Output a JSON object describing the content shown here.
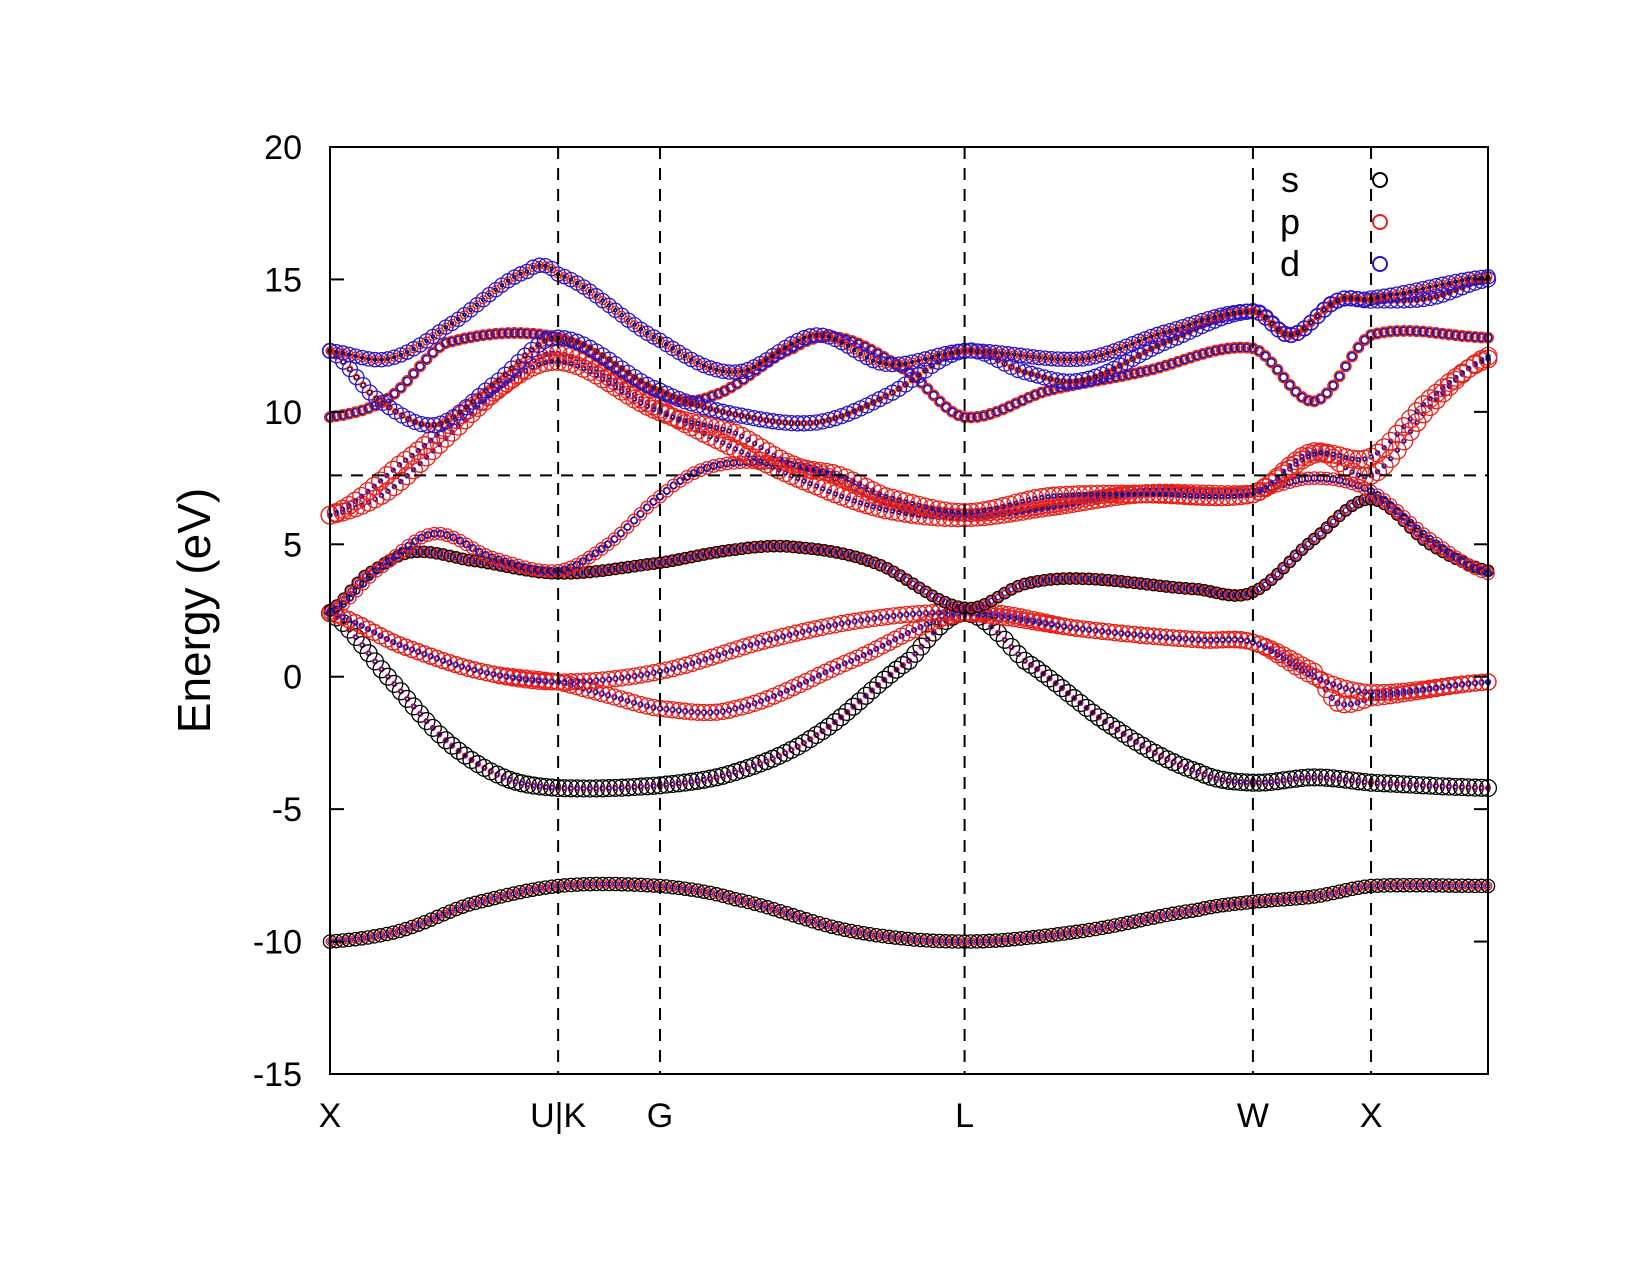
{
  "chart_data": {
    "type": "scatter",
    "title": "",
    "xlabel": "",
    "ylabel": "Energy (eV)",
    "ylim": [
      -15,
      20
    ],
    "y_ticks": [
      "-15",
      "-10",
      "-5",
      "0",
      "5",
      "10",
      "15",
      "20"
    ],
    "y_tick_values": [
      -15,
      -10,
      -5,
      0,
      5,
      10,
      15,
      20
    ],
    "xlim": [
      0,
      1
    ],
    "kpoints": [
      {
        "label": "X",
        "x": 0.0
      },
      {
        "label": "U|K",
        "x": 0.197
      },
      {
        "label": "G",
        "x": 0.285
      },
      {
        "label": "L",
        "x": 0.548
      },
      {
        "label": "W",
        "x": 0.797
      },
      {
        "label": "X",
        "x": 0.899
      }
    ],
    "fermi_level": 7.6,
    "legend": {
      "position": "top-right",
      "entries": [
        {
          "label": "s",
          "color": "#000000"
        },
        {
          "label": "p",
          "color": "#e8201a"
        },
        {
          "label": "d",
          "color": "#2b14c8"
        }
      ]
    },
    "grid": false,
    "bands": [
      {
        "points": [
          [
            0.0,
            -10.0
          ],
          [
            0.06,
            -9.6
          ],
          [
            0.12,
            -8.6
          ],
          [
            0.197,
            -7.9
          ],
          [
            0.285,
            -7.9
          ],
          [
            0.35,
            -8.4
          ],
          [
            0.45,
            -9.6
          ],
          [
            0.548,
            -10.0
          ],
          [
            0.65,
            -9.6
          ],
          [
            0.75,
            -8.8
          ],
          [
            0.797,
            -8.5
          ],
          [
            0.85,
            -8.3
          ],
          [
            0.899,
            -7.9
          ],
          [
            1.0,
            -7.9
          ]
        ],
        "weights": {
          "s": 0.6,
          "p": 0.3,
          "d": 0.1
        }
      },
      {
        "points": [
          [
            0.0,
            2.4
          ],
          [
            0.05,
            0.0
          ],
          [
            0.1,
            -2.4
          ],
          [
            0.15,
            -3.8
          ],
          [
            0.197,
            -4.2
          ],
          [
            0.285,
            -4.1
          ],
          [
            0.35,
            -3.6
          ],
          [
            0.42,
            -2.2
          ],
          [
            0.5,
            0.6
          ],
          [
            0.548,
            2.4
          ],
          [
            0.6,
            0.6
          ],
          [
            0.68,
            -2.0
          ],
          [
            0.75,
            -3.6
          ],
          [
            0.797,
            -4.0
          ],
          [
            0.85,
            -3.8
          ],
          [
            0.899,
            -4.0
          ],
          [
            1.0,
            -4.2
          ]
        ],
        "weights": {
          "s": 0.8,
          "p": 0.15,
          "d": 0.05
        }
      },
      {
        "points": [
          [
            0.0,
            2.4
          ],
          [
            0.06,
            1.2
          ],
          [
            0.13,
            0.2
          ],
          [
            0.197,
            -0.2
          ],
          [
            0.24,
            -0.7
          ],
          [
            0.285,
            -1.2
          ],
          [
            0.35,
            -1.2
          ],
          [
            0.45,
            0.6
          ],
          [
            0.548,
            2.4
          ],
          [
            0.65,
            1.8
          ],
          [
            0.75,
            1.4
          ],
          [
            0.797,
            1.3
          ],
          [
            0.85,
            0.2
          ],
          [
            0.87,
            -1.0
          ],
          [
            0.899,
            -0.8
          ],
          [
            1.0,
            -0.2
          ]
        ],
        "weights": {
          "s": 0.1,
          "p": 0.75,
          "d": 0.15
        }
      },
      {
        "points": [
          [
            0.0,
            2.4
          ],
          [
            0.06,
            1.2
          ],
          [
            0.13,
            0.2
          ],
          [
            0.197,
            -0.2
          ],
          [
            0.285,
            0.2
          ],
          [
            0.38,
            1.4
          ],
          [
            0.47,
            2.2
          ],
          [
            0.548,
            2.4
          ],
          [
            0.65,
            1.8
          ],
          [
            0.75,
            1.4
          ],
          [
            0.797,
            1.3
          ],
          [
            0.85,
            0.0
          ],
          [
            0.899,
            -0.6
          ],
          [
            1.0,
            -0.2
          ]
        ],
        "weights": {
          "s": 0.1,
          "p": 0.75,
          "d": 0.15
        }
      },
      {
        "points": [
          [
            0.0,
            2.5
          ],
          [
            0.03,
            3.8
          ],
          [
            0.07,
            4.7
          ],
          [
            0.12,
            4.4
          ],
          [
            0.197,
            3.9
          ],
          [
            0.285,
            4.3
          ],
          [
            0.35,
            4.8
          ],
          [
            0.4,
            4.9
          ],
          [
            0.47,
            4.3
          ],
          [
            0.548,
            2.6
          ],
          [
            0.6,
            3.5
          ],
          [
            0.65,
            3.7
          ],
          [
            0.75,
            3.3
          ],
          [
            0.797,
            3.2
          ],
          [
            0.85,
            5.2
          ],
          [
            0.899,
            6.7
          ],
          [
            0.95,
            5.0
          ],
          [
            1.0,
            4.0
          ]
        ],
        "weights": {
          "s": 0.5,
          "p": 0.35,
          "d": 0.15
        }
      },
      {
        "points": [
          [
            0.0,
            2.4
          ],
          [
            0.04,
            4.0
          ],
          [
            0.09,
            5.4
          ],
          [
            0.14,
            4.5
          ],
          [
            0.197,
            4.0
          ],
          [
            0.24,
            5.0
          ],
          [
            0.285,
            6.8
          ],
          [
            0.32,
            7.8
          ],
          [
            0.36,
            8.1
          ],
          [
            0.42,
            7.8
          ],
          [
            0.48,
            6.6
          ],
          [
            0.548,
            6.1
          ],
          [
            0.62,
            6.4
          ],
          [
            0.7,
            7.0
          ],
          [
            0.797,
            7.0
          ],
          [
            0.85,
            7.5
          ],
          [
            0.899,
            7.0
          ],
          [
            0.95,
            5.2
          ],
          [
            1.0,
            3.9
          ]
        ],
        "weights": {
          "s": 0.2,
          "p": 0.55,
          "d": 0.25
        }
      },
      {
        "points": [
          [
            0.0,
            6.1
          ],
          [
            0.05,
            7.0
          ],
          [
            0.1,
            9.0
          ],
          [
            0.15,
            11.0
          ],
          [
            0.197,
            12.2
          ],
          [
            0.285,
            10.1
          ],
          [
            0.35,
            8.6
          ],
          [
            0.42,
            7.2
          ],
          [
            0.48,
            6.3
          ],
          [
            0.548,
            6.0
          ],
          [
            0.62,
            6.4
          ],
          [
            0.7,
            6.9
          ],
          [
            0.797,
            6.9
          ],
          [
            0.85,
            8.5
          ],
          [
            0.899,
            7.6
          ],
          [
            0.95,
            10.2
          ],
          [
            1.0,
            12.1
          ]
        ],
        "weights": {
          "s": 0.05,
          "p": 0.85,
          "d": 0.1
        }
      },
      {
        "points": [
          [
            0.0,
            6.1
          ],
          [
            0.06,
            8.0
          ],
          [
            0.13,
            10.4
          ],
          [
            0.197,
            11.9
          ],
          [
            0.285,
            10.0
          ],
          [
            0.35,
            9.2
          ],
          [
            0.4,
            8.0
          ],
          [
            0.44,
            7.6
          ],
          [
            0.48,
            6.8
          ],
          [
            0.548,
            6.2
          ],
          [
            0.62,
            6.8
          ],
          [
            0.7,
            6.9
          ],
          [
            0.797,
            6.9
          ],
          [
            0.85,
            8.4
          ],
          [
            0.899,
            8.3
          ],
          [
            0.95,
            10.5
          ],
          [
            1.0,
            12.0
          ]
        ],
        "weights": {
          "s": 0.05,
          "p": 0.85,
          "d": 0.1
        }
      },
      {
        "points": [
          [
            0.0,
            9.8
          ],
          [
            0.05,
            10.5
          ],
          [
            0.1,
            12.6
          ],
          [
            0.197,
            12.8
          ],
          [
            0.285,
            10.7
          ],
          [
            0.33,
            10.6
          ],
          [
            0.4,
            12.4
          ],
          [
            0.44,
            12.8
          ],
          [
            0.5,
            11.5
          ],
          [
            0.548,
            9.8
          ],
          [
            0.62,
            10.8
          ],
          [
            0.7,
            11.5
          ],
          [
            0.797,
            12.4
          ],
          [
            0.85,
            10.4
          ],
          [
            0.899,
            12.9
          ],
          [
            1.0,
            12.8
          ]
        ],
        "weights": {
          "s": 0.3,
          "p": 0.45,
          "d": 0.25
        }
      },
      {
        "points": [
          [
            0.0,
            12.3
          ],
          [
            0.04,
            10.5
          ],
          [
            0.09,
            9.5
          ],
          [
            0.14,
            11.0
          ],
          [
            0.197,
            12.8
          ],
          [
            0.285,
            10.8
          ],
          [
            0.35,
            9.9
          ],
          [
            0.42,
            9.6
          ],
          [
            0.48,
            10.6
          ],
          [
            0.548,
            12.3
          ],
          [
            0.6,
            11.5
          ],
          [
            0.65,
            11.2
          ],
          [
            0.72,
            12.6
          ],
          [
            0.797,
            13.8
          ],
          [
            0.83,
            12.9
          ],
          [
            0.87,
            14.2
          ],
          [
            0.899,
            14.2
          ],
          [
            0.95,
            14.3
          ],
          [
            1.0,
            15.0
          ]
        ],
        "weights": {
          "s": 0.1,
          "p": 0.2,
          "d": 0.7
        }
      },
      {
        "points": [
          [
            0.0,
            12.3
          ],
          [
            0.05,
            12.0
          ],
          [
            0.1,
            13.2
          ],
          [
            0.17,
            15.3
          ],
          [
            0.197,
            15.2
          ],
          [
            0.285,
            12.7
          ],
          [
            0.35,
            11.5
          ],
          [
            0.42,
            12.9
          ],
          [
            0.48,
            11.8
          ],
          [
            0.548,
            12.3
          ],
          [
            0.65,
            12.0
          ],
          [
            0.72,
            13.0
          ],
          [
            0.797,
            13.8
          ],
          [
            0.83,
            12.9
          ],
          [
            0.87,
            14.2
          ],
          [
            0.899,
            14.3
          ],
          [
            1.0,
            15.1
          ]
        ],
        "weights": {
          "s": 0.05,
          "p": 0.3,
          "d": 0.65
        }
      }
    ]
  }
}
